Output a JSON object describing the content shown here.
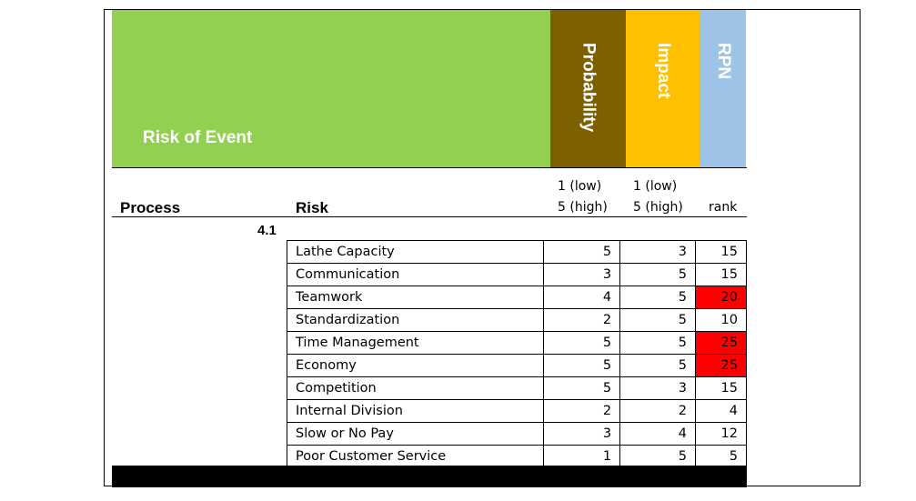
{
  "header": {
    "title": "Risk of Event",
    "col_probability": "Probability",
    "col_impact": "Impact",
    "col_rpn": "RPN"
  },
  "subheader": {
    "process": "Process",
    "risk": "Risk",
    "prob_scale_low": "1 (low)",
    "prob_scale_high": "5 (high)",
    "impact_scale_low": "1 (low)",
    "impact_scale_high": "5 (high)",
    "rank": "rank"
  },
  "section_number": "4.1",
  "colors": {
    "header_green": "#92d050",
    "probability": "#7f6000",
    "impact": "#ffc000",
    "rpn": "#9dc3e6",
    "highlight": "#ff0000"
  },
  "rows": [
    {
      "risk": "Lathe Capacity",
      "probability": 5,
      "impact": 3,
      "rpn": 15,
      "highlight": false
    },
    {
      "risk": "Communication",
      "probability": 3,
      "impact": 5,
      "rpn": 15,
      "highlight": false
    },
    {
      "risk": "Teamwork",
      "probability": 4,
      "impact": 5,
      "rpn": 20,
      "highlight": true
    },
    {
      "risk": "Standardization",
      "probability": 2,
      "impact": 5,
      "rpn": 10,
      "highlight": false
    },
    {
      "risk": "Time Management",
      "probability": 5,
      "impact": 5,
      "rpn": 25,
      "highlight": true
    },
    {
      "risk": "Economy",
      "probability": 5,
      "impact": 5,
      "rpn": 25,
      "highlight": true
    },
    {
      "risk": "Competition",
      "probability": 5,
      "impact": 3,
      "rpn": 15,
      "highlight": false
    },
    {
      "risk": "Internal Division",
      "probability": 2,
      "impact": 2,
      "rpn": 4,
      "highlight": false
    },
    {
      "risk": "Slow or No Pay",
      "probability": 3,
      "impact": 4,
      "rpn": 12,
      "highlight": false
    },
    {
      "risk": "Poor Customer Service",
      "probability": 1,
      "impact": 5,
      "rpn": 5,
      "highlight": false
    }
  ]
}
